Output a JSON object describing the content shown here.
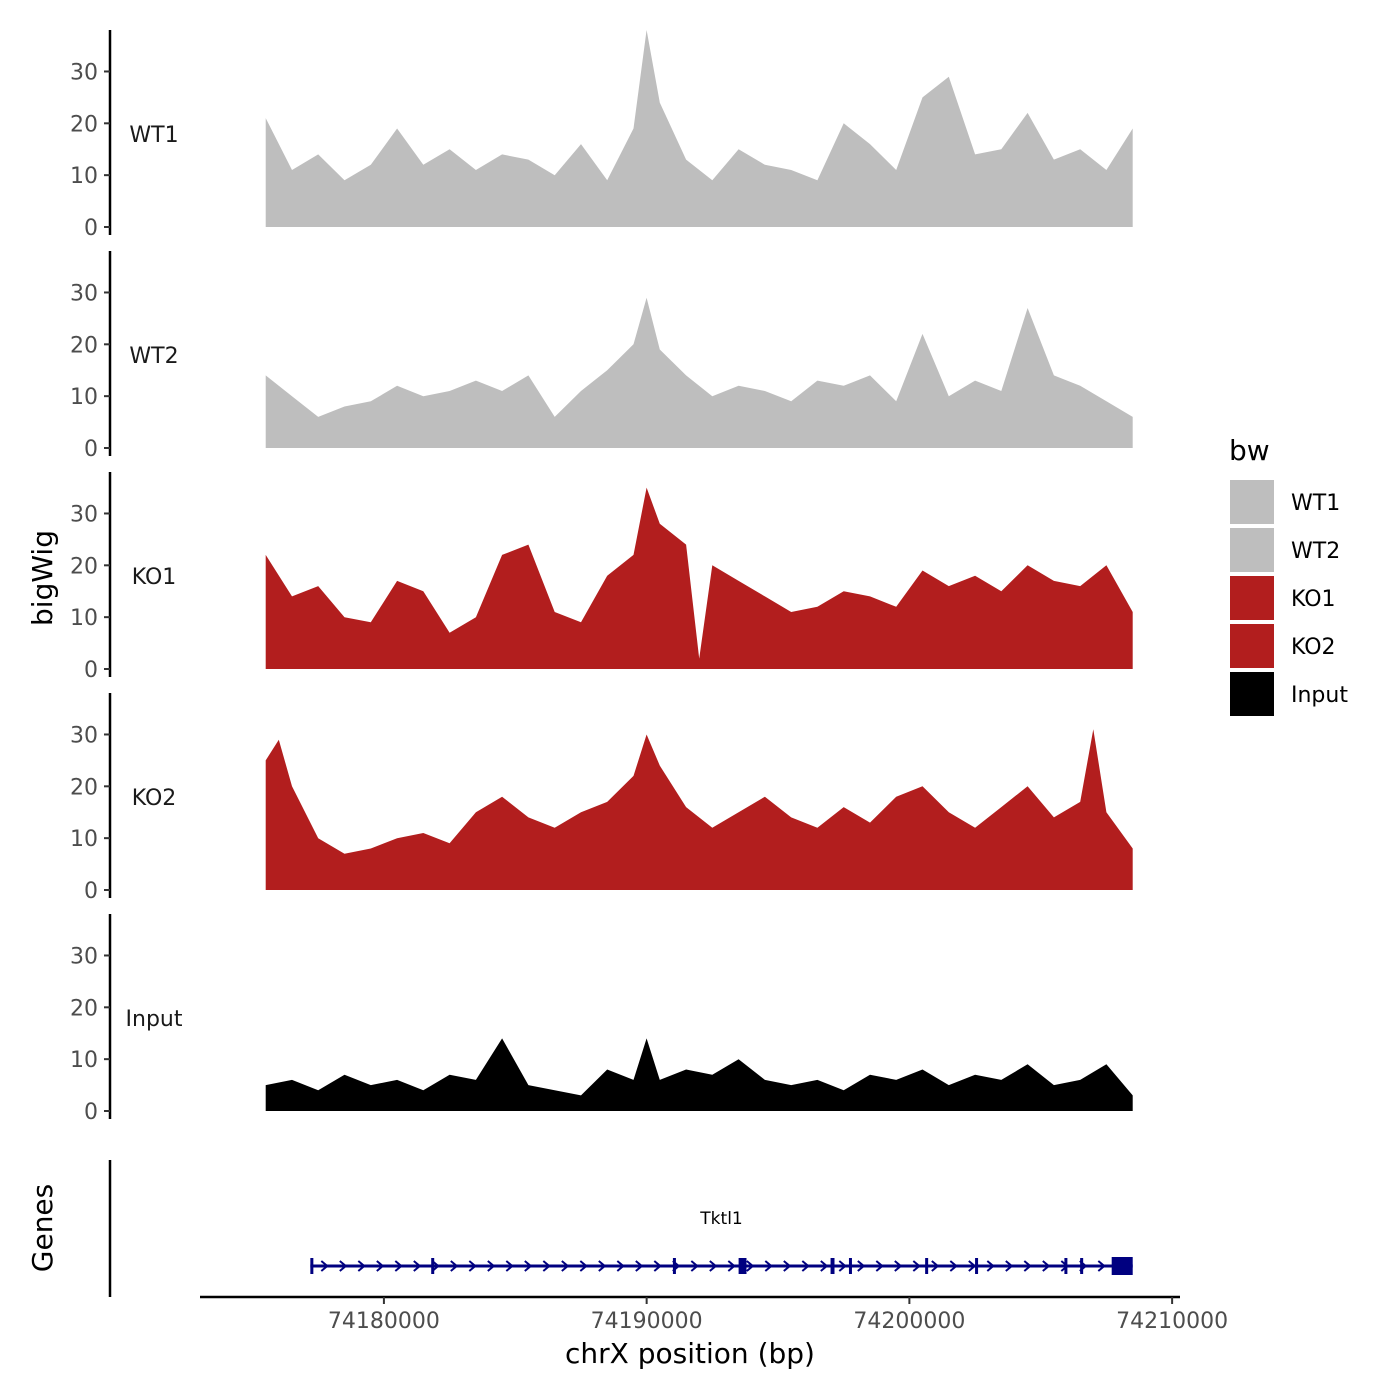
{
  "chart_data": {
    "type": "area",
    "ylabel": "bigWig",
    "xlabel": "chrX position (bp)",
    "ylim": [
      0,
      38
    ],
    "y_ticks": [
      0,
      10,
      20,
      30
    ],
    "x_range": [
      74173000,
      74210300
    ],
    "x_ticks": [
      74180000,
      74190000,
      74200000,
      74210000
    ],
    "x_tick_labels": [
      "74180000",
      "74190000",
      "74200000",
      "74210000"
    ],
    "legend": {
      "title": "bw",
      "position": "right",
      "entries": [
        {
          "label": "WT1",
          "color": "#bebebe"
        },
        {
          "label": "WT2",
          "color": "#bebebe"
        },
        {
          "label": "KO1",
          "color": "#b21e1e"
        },
        {
          "label": "KO2",
          "color": "#b21e1e"
        },
        {
          "label": "Input",
          "color": "#000000"
        }
      ]
    },
    "series": [
      {
        "name": "WT1",
        "color": "#bebebe",
        "x": [
          74175500,
          74176500,
          74177500,
          74178500,
          74179500,
          74180500,
          74181500,
          74182500,
          74183500,
          74184500,
          74185500,
          74186500,
          74187500,
          74188500,
          74189500,
          74190000,
          74190500,
          74191500,
          74192500,
          74193500,
          74194500,
          74195500,
          74196500,
          74197500,
          74198500,
          74199500,
          74200500,
          74201500,
          74202500,
          74203500,
          74204500,
          74205500,
          74206500,
          74207500,
          74208500
        ],
        "values": [
          21,
          11,
          14,
          9,
          12,
          19,
          12,
          15,
          11,
          14,
          13,
          10,
          16,
          9,
          19,
          38,
          24,
          13,
          9,
          15,
          12,
          11,
          9,
          20,
          16,
          11,
          25,
          29,
          14,
          15,
          22,
          13,
          15,
          11,
          19
        ]
      },
      {
        "name": "WT2",
        "color": "#bebebe",
        "x": [
          74175500,
          74176500,
          74177500,
          74178500,
          74179500,
          74180500,
          74181500,
          74182500,
          74183500,
          74184500,
          74185500,
          74186500,
          74187500,
          74188500,
          74189500,
          74190000,
          74190500,
          74191500,
          74192500,
          74193500,
          74194500,
          74195500,
          74196500,
          74197500,
          74198500,
          74199500,
          74200500,
          74201500,
          74202500,
          74203500,
          74204500,
          74205500,
          74206500,
          74207500,
          74208500
        ],
        "values": [
          14,
          10,
          6,
          8,
          9,
          12,
          10,
          11,
          13,
          11,
          14,
          6,
          11,
          15,
          20,
          29,
          19,
          14,
          10,
          12,
          11,
          9,
          13,
          12,
          14,
          9,
          22,
          10,
          13,
          11,
          27,
          14,
          12,
          9,
          6
        ]
      },
      {
        "name": "KO1",
        "color": "#b21e1e",
        "x": [
          74175500,
          74176500,
          74177500,
          74178500,
          74179500,
          74180500,
          74181500,
          74182500,
          74183500,
          74184500,
          74185500,
          74186500,
          74187500,
          74188500,
          74189500,
          74190000,
          74190500,
          74191500,
          74192000,
          74192500,
          74193500,
          74194500,
          74195500,
          74196500,
          74197500,
          74198500,
          74199500,
          74200500,
          74201500,
          74202500,
          74203500,
          74204500,
          74205500,
          74206500,
          74207500,
          74208500
        ],
        "values": [
          22,
          14,
          16,
          10,
          9,
          17,
          15,
          7,
          10,
          22,
          24,
          11,
          9,
          18,
          22,
          35,
          28,
          24,
          2,
          20,
          17,
          14,
          11,
          12,
          15,
          14,
          12,
          19,
          16,
          18,
          15,
          20,
          17,
          16,
          20,
          11
        ]
      },
      {
        "name": "KO2",
        "color": "#b21e1e",
        "x": [
          74175500,
          74176000,
          74176500,
          74177500,
          74178500,
          74179500,
          74180500,
          74181500,
          74182500,
          74183500,
          74184500,
          74185500,
          74186500,
          74187500,
          74188500,
          74189500,
          74190000,
          74190500,
          74191500,
          74192500,
          74193500,
          74194500,
          74195500,
          74196500,
          74197500,
          74198500,
          74199500,
          74200500,
          74201500,
          74202500,
          74203500,
          74204500,
          74205500,
          74206500,
          74207000,
          74207500,
          74208500
        ],
        "values": [
          25,
          29,
          20,
          10,
          7,
          8,
          10,
          11,
          9,
          15,
          18,
          14,
          12,
          15,
          17,
          22,
          30,
          24,
          16,
          12,
          15,
          18,
          14,
          12,
          16,
          13,
          18,
          20,
          15,
          12,
          16,
          20,
          14,
          17,
          31,
          15,
          8
        ]
      },
      {
        "name": "Input",
        "color": "#000000",
        "x": [
          74175500,
          74176500,
          74177500,
          74178500,
          74179500,
          74180500,
          74181500,
          74182500,
          74183500,
          74184500,
          74185500,
          74186500,
          74187500,
          74188500,
          74189500,
          74190000,
          74190500,
          74191500,
          74192500,
          74193500,
          74194500,
          74195500,
          74196500,
          74197500,
          74198500,
          74199500,
          74200500,
          74201500,
          74202500,
          74203500,
          74204500,
          74205500,
          74206500,
          74207500,
          74208500
        ],
        "values": [
          5,
          6,
          4,
          7,
          5,
          6,
          4,
          7,
          6,
          14,
          5,
          4,
          3,
          8,
          6,
          14,
          6,
          8,
          7,
          10,
          6,
          5,
          6,
          4,
          7,
          6,
          8,
          5,
          7,
          6,
          9,
          5,
          6,
          9,
          3
        ]
      }
    ],
    "gene_track": {
      "label": "Genes",
      "gene_name": "Tktl1",
      "color": "#000080",
      "strand": "+",
      "start": 74177200,
      "end": 74208500,
      "exons": [
        [
          74177200,
          74177300
        ],
        [
          74181800,
          74181900
        ],
        [
          74191000,
          74191100
        ],
        [
          74193500,
          74193800
        ],
        [
          74197000,
          74197150
        ],
        [
          74197700,
          74197800
        ],
        [
          74200600,
          74200700
        ],
        [
          74202500,
          74202550
        ],
        [
          74205900,
          74205950
        ],
        [
          74206500,
          74206550
        ],
        [
          74207700,
          74208500
        ]
      ]
    }
  }
}
